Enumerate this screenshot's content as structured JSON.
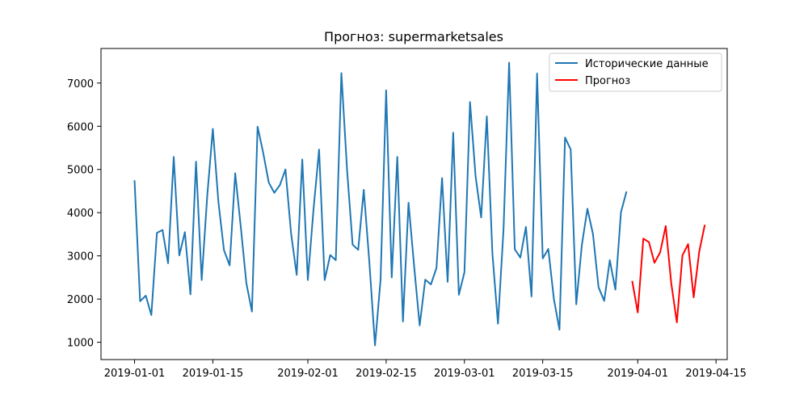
{
  "chart_data": {
    "type": "line",
    "title": "Прогноз: supermarketsales",
    "xlabel": "",
    "ylabel": "",
    "x_start_date": "2019-01-01",
    "xlim": [
      "2018-12-26",
      "2019-04-17"
    ],
    "ylim": [
      600,
      7800
    ],
    "x_ticks": [
      "2019-01-01",
      "2019-01-15",
      "2019-02-01",
      "2019-02-15",
      "2019-03-01",
      "2019-03-15",
      "2019-04-01",
      "2019-04-15"
    ],
    "y_ticks": [
      1000,
      2000,
      3000,
      4000,
      5000,
      6000,
      7000
    ],
    "legend_position": "top-right",
    "grid": false,
    "series": [
      {
        "name": "Исторические данные",
        "color": "#1f77b4",
        "x": [
          "2019-01-01",
          "2019-01-02",
          "2019-01-03",
          "2019-01-04",
          "2019-01-05",
          "2019-01-06",
          "2019-01-07",
          "2019-01-08",
          "2019-01-09",
          "2019-01-10",
          "2019-01-11",
          "2019-01-12",
          "2019-01-13",
          "2019-01-14",
          "2019-01-15",
          "2019-01-16",
          "2019-01-17",
          "2019-01-18",
          "2019-01-19",
          "2019-01-20",
          "2019-01-21",
          "2019-01-22",
          "2019-01-23",
          "2019-01-24",
          "2019-01-25",
          "2019-01-26",
          "2019-01-27",
          "2019-01-28",
          "2019-01-29",
          "2019-01-30",
          "2019-01-31",
          "2019-02-01",
          "2019-02-02",
          "2019-02-03",
          "2019-02-04",
          "2019-02-05",
          "2019-02-06",
          "2019-02-07",
          "2019-02-08",
          "2019-02-09",
          "2019-02-10",
          "2019-02-11",
          "2019-02-12",
          "2019-02-13",
          "2019-02-14",
          "2019-02-15",
          "2019-02-16",
          "2019-02-17",
          "2019-02-18",
          "2019-02-19",
          "2019-02-20",
          "2019-02-21",
          "2019-02-22",
          "2019-02-23",
          "2019-02-24",
          "2019-02-25",
          "2019-02-26",
          "2019-02-27",
          "2019-02-28",
          "2019-03-01",
          "2019-03-02",
          "2019-03-03",
          "2019-03-04",
          "2019-03-05",
          "2019-03-06",
          "2019-03-07",
          "2019-03-08",
          "2019-03-09",
          "2019-03-10",
          "2019-03-11",
          "2019-03-12",
          "2019-03-13",
          "2019-03-14",
          "2019-03-15",
          "2019-03-16",
          "2019-03-17",
          "2019-03-18",
          "2019-03-19",
          "2019-03-20",
          "2019-03-21",
          "2019-03-22",
          "2019-03-23",
          "2019-03-24",
          "2019-03-25",
          "2019-03-26",
          "2019-03-27",
          "2019-03-28",
          "2019-03-29",
          "2019-03-30"
        ],
        "values": [
          4750,
          1950,
          2080,
          1630,
          3530,
          3600,
          2830,
          5290,
          3010,
          3550,
          2110,
          5180,
          2440,
          4390,
          5940,
          4250,
          3130,
          2780,
          4910,
          3670,
          2370,
          1710,
          5990,
          5390,
          4700,
          4460,
          4640,
          5000,
          3510,
          2560,
          5230,
          2440,
          4050,
          5460,
          2440,
          3020,
          2900,
          7230,
          5000,
          3260,
          3140,
          4530,
          2860,
          930,
          2450,
          6830,
          2500,
          5290,
          1480,
          4230,
          2770,
          1390,
          2450,
          2340,
          2720,
          4800,
          2400,
          5850,
          2100,
          2620,
          6560,
          4840,
          3890,
          6230,
          3060,
          1430,
          3620,
          7470,
          3150,
          2960,
          3670,
          2060,
          7220,
          2940,
          3160,
          2000,
          1290,
          5740,
          5460,
          1880,
          3250,
          4090,
          3500,
          2270,
          1960,
          2900,
          2220,
          4010,
          4490
        ]
      },
      {
        "name": "Прогноз",
        "color": "#ff0000",
        "x": [
          "2019-03-31",
          "2019-04-01",
          "2019-04-02",
          "2019-04-03",
          "2019-04-04",
          "2019-04-05",
          "2019-04-06",
          "2019-04-07",
          "2019-04-08",
          "2019-04-09",
          "2019-04-10",
          "2019-04-11",
          "2019-04-12",
          "2019-04-13"
        ],
        "values": [
          2420,
          1690,
          3400,
          3320,
          2840,
          3080,
          3690,
          2360,
          1460,
          3010,
          3270,
          2040,
          3100,
          3720
        ]
      }
    ]
  }
}
